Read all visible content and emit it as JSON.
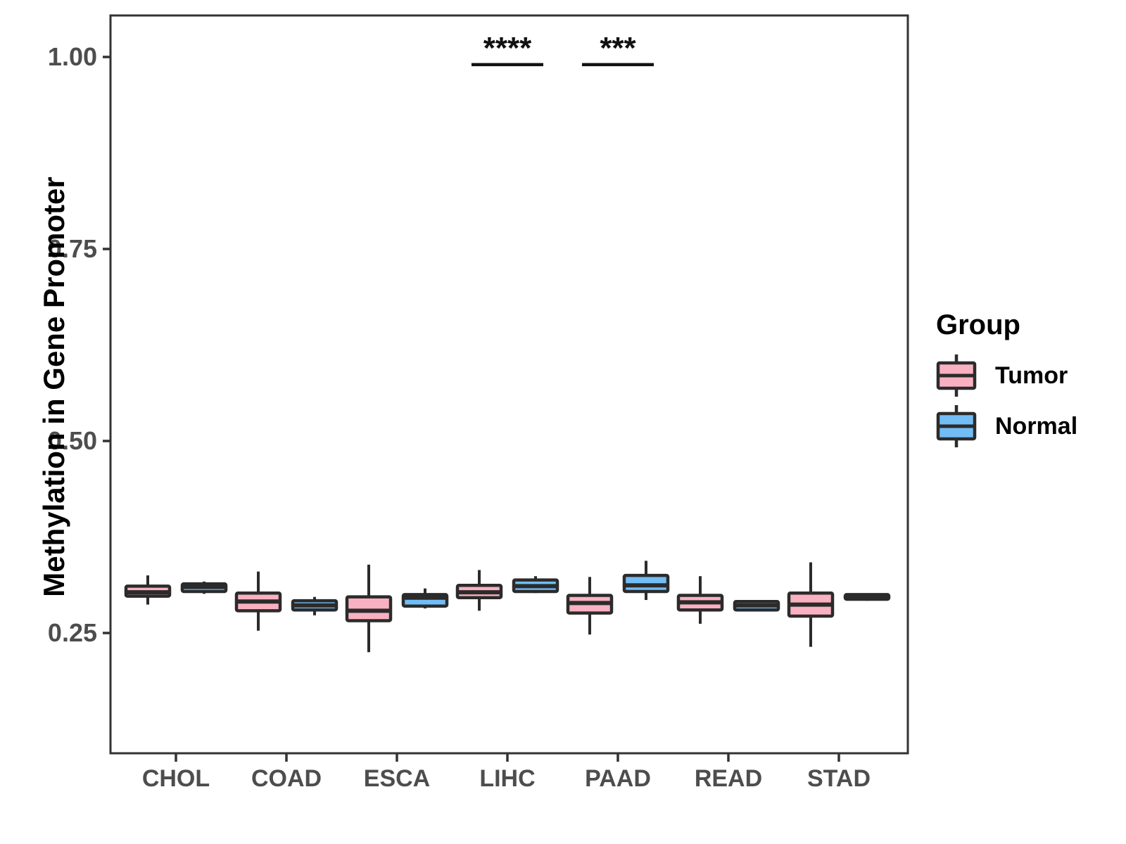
{
  "y_axis": {
    "title": "Methylation in Gene Promoter",
    "ticks": [
      {
        "label": "1.00",
        "value": 1.0
      },
      {
        "label": "0.75",
        "value": 0.75
      },
      {
        "label": "0.50",
        "value": 0.5
      },
      {
        "label": "0.25",
        "value": 0.25
      }
    ]
  },
  "x_axis": {
    "categories": [
      "CHOL",
      "COAD",
      "ESCA",
      "LIHC",
      "PAAD",
      "READ",
      "STAD"
    ]
  },
  "legend": {
    "title": "Group",
    "entries": [
      {
        "label": "Tumor",
        "color": "#F9B1C1"
      },
      {
        "label": "Normal",
        "color": "#72BDF6"
      }
    ]
  },
  "colors": {
    "tumor_fill": "#F9B1C1",
    "normal_fill": "#72BDF6",
    "box_stroke": "#2B2B2B",
    "panel_border": "#333333",
    "tick_text": "#4D4D4D",
    "annotation": "#111111"
  },
  "chart_data": {
    "type": "boxplot",
    "title": "",
    "xlabel": "",
    "ylabel": "Methylation in Gene Promoter",
    "categories": [
      "CHOL",
      "COAD",
      "ESCA",
      "LIHC",
      "PAAD",
      "READ",
      "STAD"
    ],
    "yticks": [
      0.25,
      0.5,
      0.75,
      1.0
    ],
    "ylim": [
      0.09,
      1.06
    ],
    "grid": false,
    "legend_position": "right",
    "series": [
      {
        "name": "Tumor",
        "color": "#F9B1C1",
        "boxes": [
          {
            "category": "CHOL",
            "min": 0.287,
            "q1": 0.298,
            "median": 0.303,
            "q3": 0.311,
            "max": 0.325
          },
          {
            "category": "COAD",
            "min": 0.253,
            "q1": 0.279,
            "median": 0.291,
            "q3": 0.302,
            "max": 0.33
          },
          {
            "category": "ESCA",
            "min": 0.225,
            "q1": 0.266,
            "median": 0.279,
            "q3": 0.297,
            "max": 0.339
          },
          {
            "category": "LIHC",
            "min": 0.279,
            "q1": 0.296,
            "median": 0.303,
            "q3": 0.312,
            "max": 0.332
          },
          {
            "category": "PAAD",
            "min": 0.248,
            "q1": 0.276,
            "median": 0.289,
            "q3": 0.299,
            "max": 0.323
          },
          {
            "category": "READ",
            "min": 0.262,
            "q1": 0.28,
            "median": 0.29,
            "q3": 0.299,
            "max": 0.324
          },
          {
            "category": "STAD",
            "min": 0.232,
            "q1": 0.272,
            "median": 0.287,
            "q3": 0.302,
            "max": 0.342
          }
        ]
      },
      {
        "name": "Normal",
        "color": "#72BDF6",
        "boxes": [
          {
            "category": "CHOL",
            "min": 0.301,
            "q1": 0.304,
            "median": 0.31,
            "q3": 0.314,
            "max": 0.317
          },
          {
            "category": "COAD",
            "min": 0.273,
            "q1": 0.28,
            "median": 0.286,
            "q3": 0.292,
            "max": 0.297
          },
          {
            "category": "ESCA",
            "min": 0.282,
            "q1": 0.285,
            "median": 0.296,
            "q3": 0.3,
            "max": 0.308
          },
          {
            "category": "LIHC",
            "min": 0.302,
            "q1": 0.304,
            "median": 0.311,
            "q3": 0.319,
            "max": 0.324
          },
          {
            "category": "PAAD",
            "min": 0.293,
            "q1": 0.304,
            "median": 0.312,
            "q3": 0.325,
            "max": 0.344
          },
          {
            "category": "READ",
            "min": 0.278,
            "q1": 0.28,
            "median": 0.286,
            "q3": 0.291,
            "max": 0.293
          },
          {
            "category": "STAD",
            "min": 0.292,
            "q1": 0.294,
            "median": 0.298,
            "q3": 0.3,
            "max": 0.301
          }
        ]
      }
    ],
    "annotations": [
      {
        "category": "LIHC",
        "label": "****",
        "line_y": 0.99
      },
      {
        "category": "PAAD",
        "label": "***",
        "line_y": 0.99
      }
    ]
  }
}
